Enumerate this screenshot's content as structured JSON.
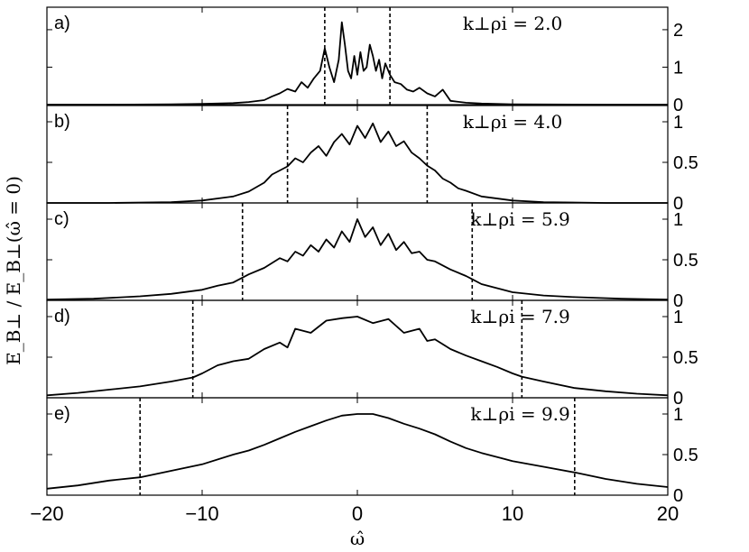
{
  "chart_data": {
    "type": "line",
    "xlabel": "ω̂",
    "ylabel": "E_B⊥ / E_B⊥(ω̂ = 0)",
    "xlim": [
      -20,
      20
    ],
    "xticks": [
      "−20",
      "−10",
      "0",
      "10",
      "20"
    ],
    "line_color": "#000000",
    "panels": [
      {
        "id": "a)",
        "annotation": "k⊥ρi = 2.0",
        "ylim": [
          0,
          2.6
        ],
        "yticks": [
          "0",
          "1",
          "2"
        ],
        "ytick_values": [
          0,
          1,
          2
        ],
        "dashed_x": [
          -2.1,
          2.1
        ],
        "x": [
          -20,
          -16,
          -12,
          -10,
          -8,
          -7,
          -6,
          -5.5,
          -5,
          -4.5,
          -4,
          -3.6,
          -3.2,
          -2.8,
          -2.4,
          -2.1,
          -1.8,
          -1.5,
          -1.2,
          -1,
          -0.8,
          -0.6,
          -0.4,
          -0.2,
          0,
          0.2,
          0.4,
          0.6,
          0.8,
          1,
          1.2,
          1.4,
          1.6,
          1.8,
          2.1,
          2.4,
          2.8,
          3.2,
          3.6,
          4,
          4.5,
          5,
          5.5,
          6,
          7,
          8,
          10,
          12,
          16,
          20
        ],
        "y": [
          0,
          0,
          0.01,
          0.02,
          0.04,
          0.07,
          0.12,
          0.22,
          0.3,
          0.42,
          0.35,
          0.6,
          0.45,
          0.7,
          0.9,
          1.5,
          1.0,
          0.6,
          1.2,
          2.2,
          1.6,
          0.9,
          0.7,
          1.3,
          0.8,
          1.4,
          0.9,
          1.0,
          1.6,
          1.3,
          0.9,
          1.2,
          0.7,
          1.1,
          0.8,
          0.6,
          0.55,
          0.4,
          0.35,
          0.45,
          0.3,
          0.22,
          0.4,
          0.1,
          0.05,
          0.03,
          0.01,
          0.005,
          0,
          0
        ]
      },
      {
        "id": "b)",
        "annotation": "k⊥ρi = 4.0",
        "ylim": [
          0,
          1.2
        ],
        "yticks": [
          "0",
          "0.5",
          "1"
        ],
        "ytick_values": [
          0,
          0.5,
          1
        ],
        "dashed_x": [
          -4.5,
          4.5
        ],
        "x": [
          -20,
          -16,
          -12,
          -10,
          -8,
          -7,
          -6,
          -5.5,
          -5,
          -4.5,
          -4,
          -3.5,
          -3,
          -2.5,
          -2,
          -1.5,
          -1,
          -0.5,
          0,
          0.5,
          1,
          1.5,
          2,
          2.5,
          3,
          3.5,
          4,
          4.5,
          5,
          5.5,
          6,
          6.5,
          7,
          8,
          10,
          12,
          16,
          20
        ],
        "y": [
          0,
          0,
          0.01,
          0.03,
          0.08,
          0.14,
          0.25,
          0.35,
          0.4,
          0.45,
          0.55,
          0.5,
          0.62,
          0.7,
          0.58,
          0.75,
          0.85,
          0.72,
          0.95,
          0.8,
          0.98,
          0.75,
          0.88,
          0.7,
          0.76,
          0.62,
          0.55,
          0.46,
          0.4,
          0.3,
          0.25,
          0.18,
          0.15,
          0.08,
          0.03,
          0.01,
          0,
          0
        ]
      },
      {
        "id": "c)",
        "annotation": "k⊥ρi = 5.9",
        "ylim": [
          0,
          1.2
        ],
        "yticks": [
          "0",
          "0.5",
          "1"
        ],
        "ytick_values": [
          0,
          0.5,
          1
        ],
        "dashed_x": [
          -7.4,
          7.4
        ],
        "x": [
          -20,
          -17,
          -14,
          -12,
          -10,
          -9,
          -8,
          -7.4,
          -7,
          -6,
          -5,
          -4.5,
          -4,
          -3.5,
          -3,
          -2.5,
          -2,
          -1.5,
          -1,
          -0.5,
          0,
          0.5,
          1,
          1.5,
          2,
          2.5,
          3,
          3.5,
          4,
          4.5,
          5,
          6,
          7,
          7.4,
          8,
          9,
          10,
          12,
          14,
          17,
          20
        ],
        "y": [
          0.01,
          0.02,
          0.05,
          0.08,
          0.13,
          0.18,
          0.22,
          0.28,
          0.32,
          0.4,
          0.52,
          0.48,
          0.6,
          0.55,
          0.68,
          0.6,
          0.75,
          0.65,
          0.85,
          0.72,
          1.0,
          0.78,
          0.9,
          0.68,
          0.82,
          0.62,
          0.72,
          0.58,
          0.6,
          0.5,
          0.48,
          0.38,
          0.3,
          0.26,
          0.2,
          0.15,
          0.1,
          0.06,
          0.04,
          0.02,
          0.01
        ]
      },
      {
        "id": "d)",
        "annotation": "k⊥ρi = 7.9",
        "ylim": [
          0,
          1.2
        ],
        "yticks": [
          "0",
          "0.5",
          "1"
        ],
        "ytick_values": [
          0,
          0.5,
          1
        ],
        "dashed_x": [
          -10.6,
          10.6
        ],
        "x": [
          -20,
          -18,
          -16,
          -14,
          -12,
          -10.6,
          -10,
          -9,
          -8,
          -7,
          -6,
          -5,
          -4.5,
          -4,
          -3,
          -2,
          -1,
          0,
          1,
          2,
          3,
          4,
          4.5,
          5,
          6,
          7,
          8,
          9,
          10,
          10.6,
          12,
          14,
          16,
          18,
          20
        ],
        "y": [
          0.03,
          0.06,
          0.1,
          0.14,
          0.2,
          0.25,
          0.3,
          0.4,
          0.45,
          0.48,
          0.6,
          0.68,
          0.62,
          0.85,
          0.8,
          0.95,
          0.98,
          1.0,
          0.92,
          0.97,
          0.8,
          0.85,
          0.7,
          0.72,
          0.6,
          0.52,
          0.45,
          0.38,
          0.3,
          0.26,
          0.2,
          0.12,
          0.08,
          0.05,
          0.03
        ]
      },
      {
        "id": "e)",
        "annotation": "k⊥ρi = 9.9",
        "ylim": [
          0,
          1.2
        ],
        "yticks": [
          "0",
          "0.5",
          "1"
        ],
        "ytick_values": [
          0,
          0.5,
          1
        ],
        "dashed_x": [
          -14,
          14
        ],
        "x": [
          -20,
          -18,
          -16,
          -14,
          -12,
          -10,
          -8,
          -7,
          -6,
          -5,
          -4,
          -3,
          -2,
          -1,
          0,
          1,
          2,
          3,
          4,
          5,
          6,
          7,
          8,
          10,
          12,
          14,
          16,
          18,
          20
        ],
        "y": [
          0.08,
          0.12,
          0.18,
          0.22,
          0.3,
          0.38,
          0.5,
          0.55,
          0.62,
          0.7,
          0.78,
          0.85,
          0.92,
          0.98,
          1.0,
          1.0,
          0.95,
          0.88,
          0.82,
          0.75,
          0.66,
          0.58,
          0.52,
          0.42,
          0.35,
          0.28,
          0.2,
          0.14,
          0.1
        ]
      }
    ]
  }
}
